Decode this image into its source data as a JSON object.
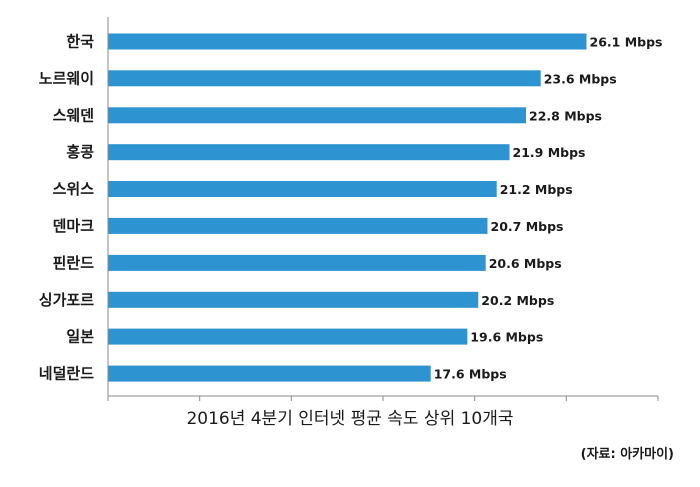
{
  "chart_data": {
    "type": "bar",
    "orientation": "horizontal",
    "categories": [
      "한국",
      "노르웨이",
      "스웨덴",
      "홍콩",
      "스위스",
      "덴마크",
      "핀란드",
      "싱가포르",
      "일본",
      "네덜란드"
    ],
    "values": [
      26.1,
      23.6,
      22.8,
      21.9,
      21.2,
      20.7,
      20.6,
      20.2,
      19.6,
      17.6
    ],
    "value_unit": "Mbps",
    "xlim": [
      0,
      30
    ],
    "xticks": [
      0,
      5,
      10,
      15,
      20,
      25,
      30
    ],
    "bar_color": "#2e93d1",
    "grid": false,
    "legend": "none",
    "title": "2016년 4분기 인터넷 평균 속도 상위 10개국",
    "source": "(자료: 아카마이)"
  }
}
